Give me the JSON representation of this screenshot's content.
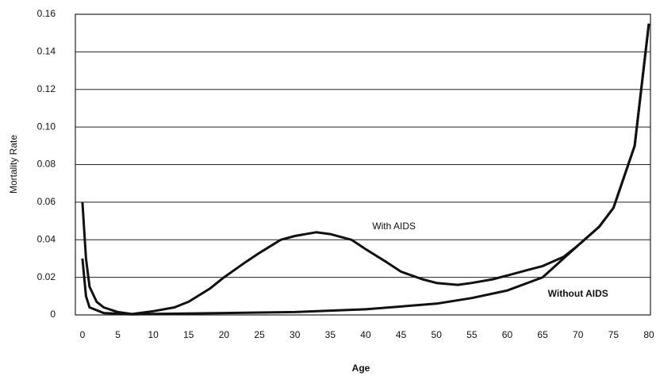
{
  "chart_data": {
    "type": "line",
    "xlabel": "Age",
    "ylabel": "Mortality Rate",
    "xlim": [
      -1,
      80
    ],
    "xticks": [
      0,
      5,
      10,
      15,
      20,
      25,
      30,
      35,
      40,
      45,
      50,
      55,
      60,
      65,
      70,
      75,
      80
    ],
    "ylim": [
      0,
      0.16
    ],
    "yticks": [
      0,
      0.02,
      0.04,
      0.06,
      0.08,
      {
        "value": 0.1,
        "label": "0.10"
      },
      0.12,
      0.14,
      0.16
    ],
    "grid": true,
    "series": [
      {
        "name": "With AIDS",
        "color": "#111111",
        "x": [
          0,
          0.5,
          1,
          2,
          3,
          5,
          7,
          10,
          13,
          15,
          18,
          20,
          23,
          25,
          28,
          30,
          33,
          35,
          38,
          40,
          43,
          45,
          48,
          50,
          53,
          55,
          58,
          60,
          63,
          65,
          68,
          70,
          73,
          75,
          78,
          80
        ],
        "values": [
          0.06,
          0.03,
          0.015,
          0.007,
          0.004,
          0.0015,
          0.0005,
          0.002,
          0.004,
          0.007,
          0.014,
          0.02,
          0.028,
          0.033,
          0.04,
          0.042,
          0.044,
          0.043,
          0.04,
          0.035,
          0.028,
          0.023,
          0.019,
          0.017,
          0.016,
          0.017,
          0.019,
          0.021,
          0.024,
          0.026,
          0.031,
          0.037,
          0.047,
          0.057,
          0.09,
          0.155
        ]
      },
      {
        "name": "Without AIDS",
        "color": "#111111",
        "x": [
          0,
          0.5,
          1,
          3,
          7,
          10,
          20,
          30,
          40,
          50,
          55,
          60,
          65,
          70,
          73,
          75,
          78,
          80
        ],
        "values": [
          0.03,
          0.01,
          0.004,
          0.001,
          0.0003,
          0.0005,
          0.001,
          0.0015,
          0.003,
          0.006,
          0.009,
          0.013,
          0.02,
          0.037,
          0.047,
          0.057,
          0.09,
          0.155
        ]
      }
    ]
  }
}
